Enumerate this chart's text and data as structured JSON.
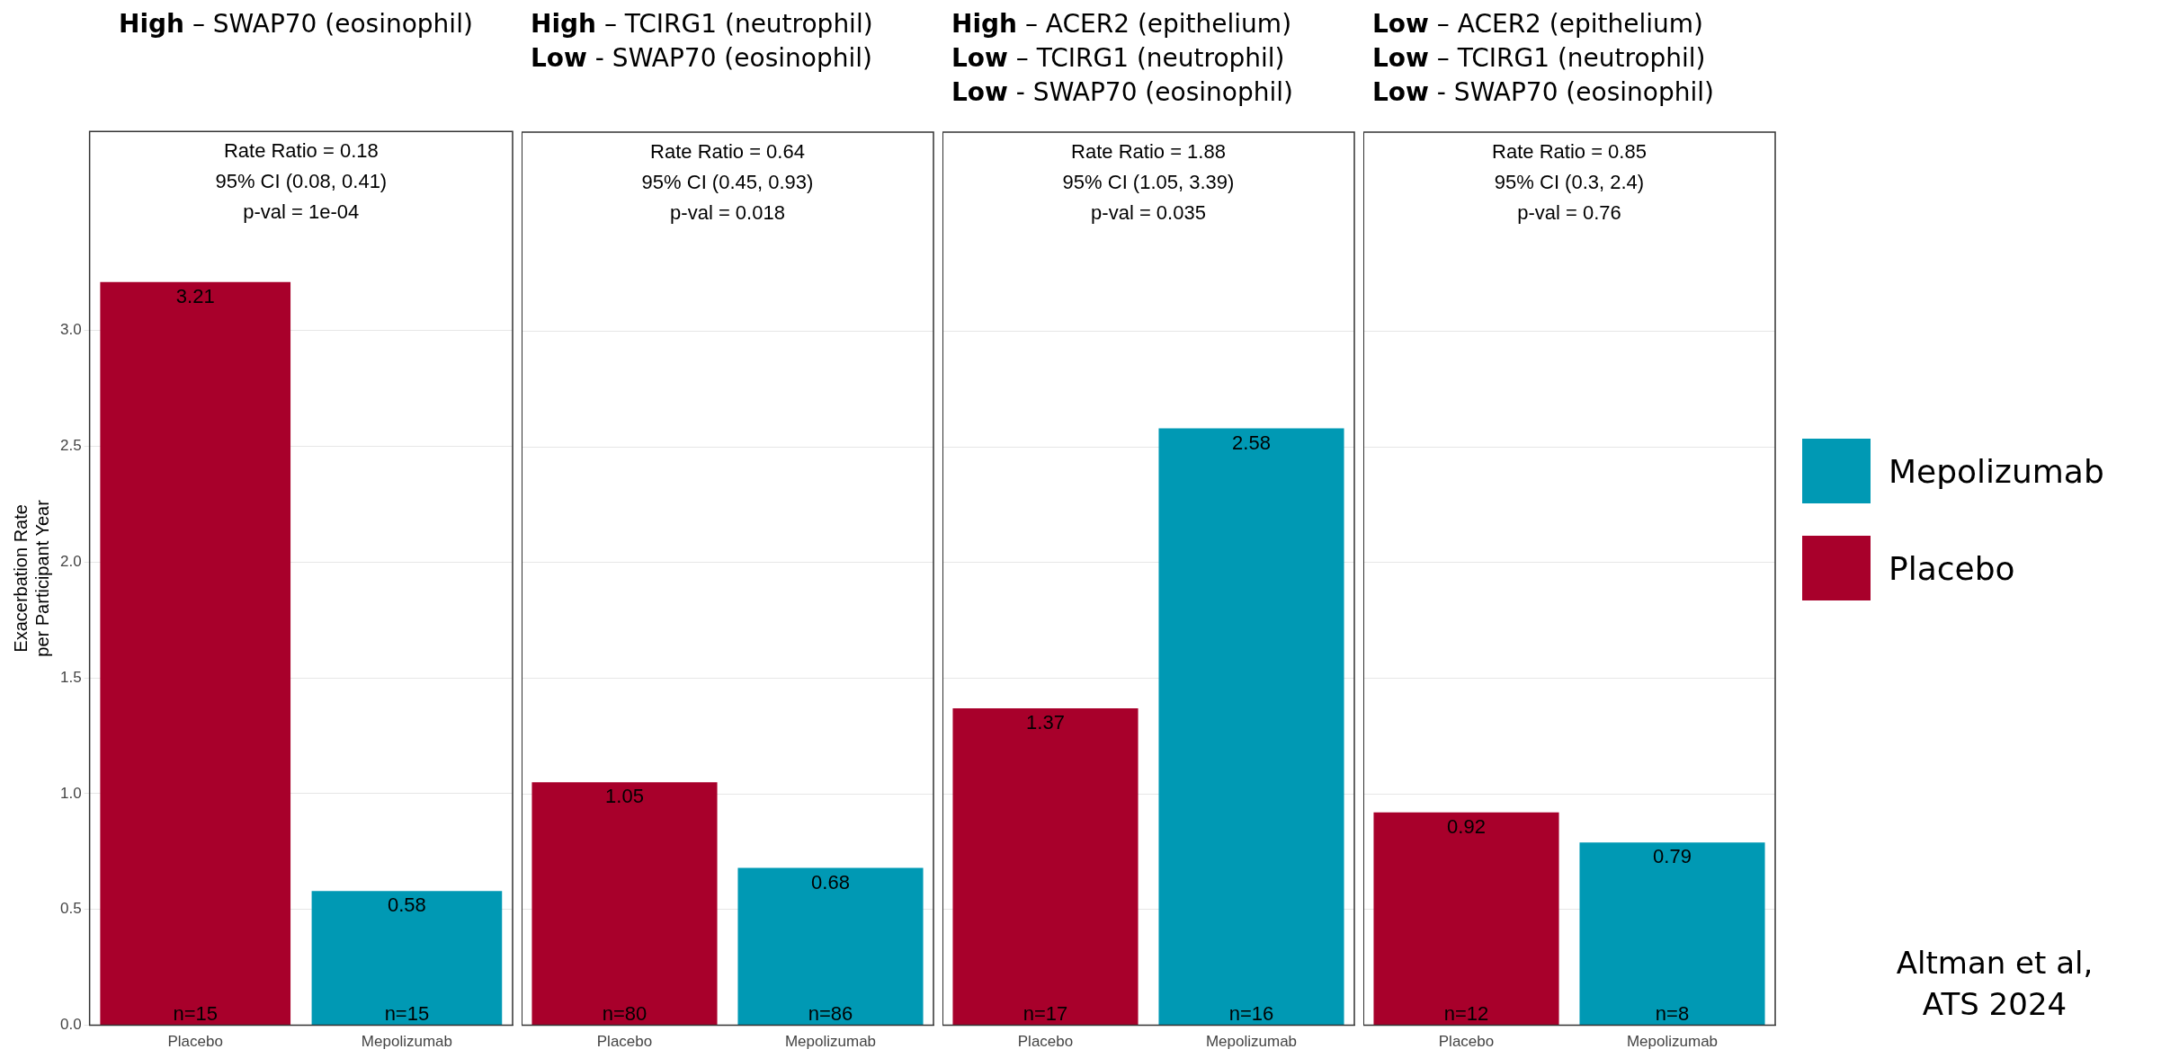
{
  "chart_data": [
    {
      "type": "bar",
      "title": "High – SWAP70 (eosinophil)",
      "ylabel": "Exacerbation Rate\nper Participant Year",
      "categories": [
        "Placebo",
        "Mepolizumab"
      ],
      "series": [
        {
          "color": "#0099b4",
          "values": [
            null,
            0.58
          ]
        },
        {
          "color": "#a8002b",
          "values": [
            3.21,
            null
          ]
        }
      ],
      "ylim": [
        0,
        3.86
      ],
      "yticks": [
        {
          "value": 0,
          "label": "0.0"
        },
        {
          "value": 0.5,
          "label": "0.5"
        },
        {
          "value": 1,
          "label": "1.0"
        },
        {
          "value": 1.5,
          "label": "1.5"
        },
        {
          "value": 2,
          "label": "2.0"
        },
        {
          "value": 2.5,
          "label": "2.5"
        },
        {
          "value": 3,
          "label": "3.0"
        }
      ],
      "grid": "y",
      "data_labels": true,
      "annotations": [
        "Rate Ratio = 0.18",
        "95% CI (0.08, 0.41)",
        "p-val = 1e-04",
        "n=15",
        "n=15"
      ]
    },
    {
      "type": "bar",
      "title": "High – TCIRG1 (neutrophil)\nLow - SWAP70 (eosinophil)",
      "categories": [
        "Placebo",
        "Mepolizumab"
      ],
      "series": [
        {
          "color": "#0099b4",
          "values": [
            null,
            0.68
          ]
        },
        {
          "color": "#a8002b",
          "values": [
            1.05,
            null
          ]
        }
      ],
      "ylim": [
        0,
        3.86
      ],
      "yticks": [
        0,
        0.5,
        1,
        1.5,
        2,
        2.5,
        3
      ],
      "tick_labels": "x",
      "grid": "y",
      "data_labels": true,
      "annotations": [
        "Rate Ratio = 0.64",
        "95% CI (0.45, 0.93)",
        "p-val = 0.018",
        "n=80",
        "n=86"
      ]
    },
    {
      "type": "bar",
      "title": "High – ACER2 (epithelium)\nLow – TCIRG1 (neutrophil)\nLow - SWAP70 (eosinophil)",
      "categories": [
        "Placebo",
        "Mepolizumab"
      ],
      "series": [
        {
          "color": "#0099b4",
          "values": [
            null,
            2.58
          ]
        },
        {
          "color": "#a8002b",
          "values": [
            1.37,
            null
          ]
        }
      ],
      "ylim": [
        0,
        3.86
      ],
      "yticks": [
        0,
        0.5,
        1,
        1.5,
        2,
        2.5,
        3
      ],
      "tick_labels": "x",
      "grid": "y",
      "data_labels": true,
      "annotations": [
        "Rate Ratio = 1.88",
        "95% CI (1.05, 3.39)",
        "p-val = 0.035",
        "n=17",
        "n=16"
      ]
    },
    {
      "type": "bar",
      "title": "Low – ACER2 (epithelium)\nLow – TCIRG1 (neutrophil)\nLow - SWAP70 (eosinophil)",
      "categories": [
        "Placebo",
        "Mepolizumab"
      ],
      "series": [
        {
          "name": "Mepolizumab",
          "color": "#0099b4",
          "values": [
            null,
            0.79
          ]
        },
        {
          "name": "Placebo",
          "color": "#a8002b",
          "values": [
            0.92,
            null
          ]
        }
      ],
      "ylim": [
        0,
        3.86
      ],
      "yticks": [
        0,
        0.5,
        1,
        1.5,
        2,
        2.5,
        3
      ],
      "tick_labels": "x",
      "grid": "y",
      "data_labels": true,
      "legend": "right",
      "annotations": [
        "Rate Ratio = 0.85",
        "95% CI (0.3, 2.4)",
        "p-val = 0.76",
        "n=12",
        "n=8"
      ]
    },
    {
      "type": "other",
      "annotations": [
        "Altman et al,\nATS 2024"
      ]
    }
  ]
}
